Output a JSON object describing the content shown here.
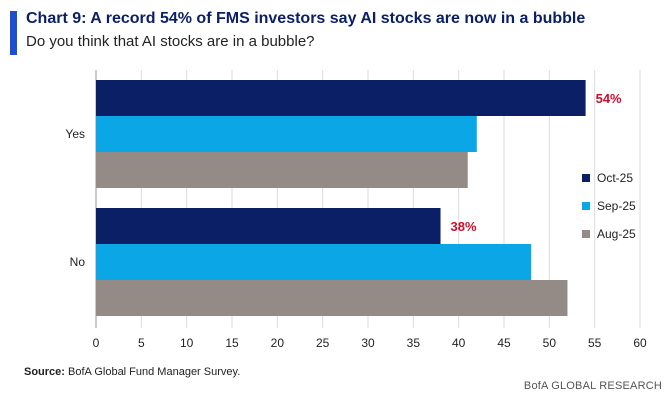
{
  "header": {
    "title": "Chart 9: A record 54% of FMS investors say AI stocks are now in a bubble",
    "subtitle": "Do you think that AI stocks are in a bubble?"
  },
  "footer": {
    "source_label": "Source:",
    "source_text": "BofA Global Fund Manager Survey.",
    "credit": "BofA GLOBAL RESEARCH"
  },
  "colors": {
    "accent": "#1f4fd1",
    "oct": "#0b1f66",
    "sep": "#0aa6e6",
    "aug": "#948b86",
    "highlight": "#c8102e",
    "grid": "#dcdcdc"
  },
  "chart_data": {
    "type": "bar",
    "orientation": "horizontal",
    "categories": [
      "Yes",
      "No"
    ],
    "series": [
      {
        "name": "Oct-25",
        "values": [
          54,
          38
        ]
      },
      {
        "name": "Sep-25",
        "values": [
          42,
          48
        ]
      },
      {
        "name": "Aug-25",
        "values": [
          41,
          52
        ]
      }
    ],
    "data_labels": [
      {
        "category": "Yes",
        "series": "Oct-25",
        "text": "54%"
      },
      {
        "category": "No",
        "series": "Oct-25",
        "text": "38%"
      }
    ],
    "xlim": [
      0,
      60
    ],
    "xticks": [
      0,
      5,
      10,
      15,
      20,
      25,
      30,
      35,
      40,
      45,
      50,
      55,
      60
    ],
    "grid": true,
    "legend_position": "right"
  }
}
